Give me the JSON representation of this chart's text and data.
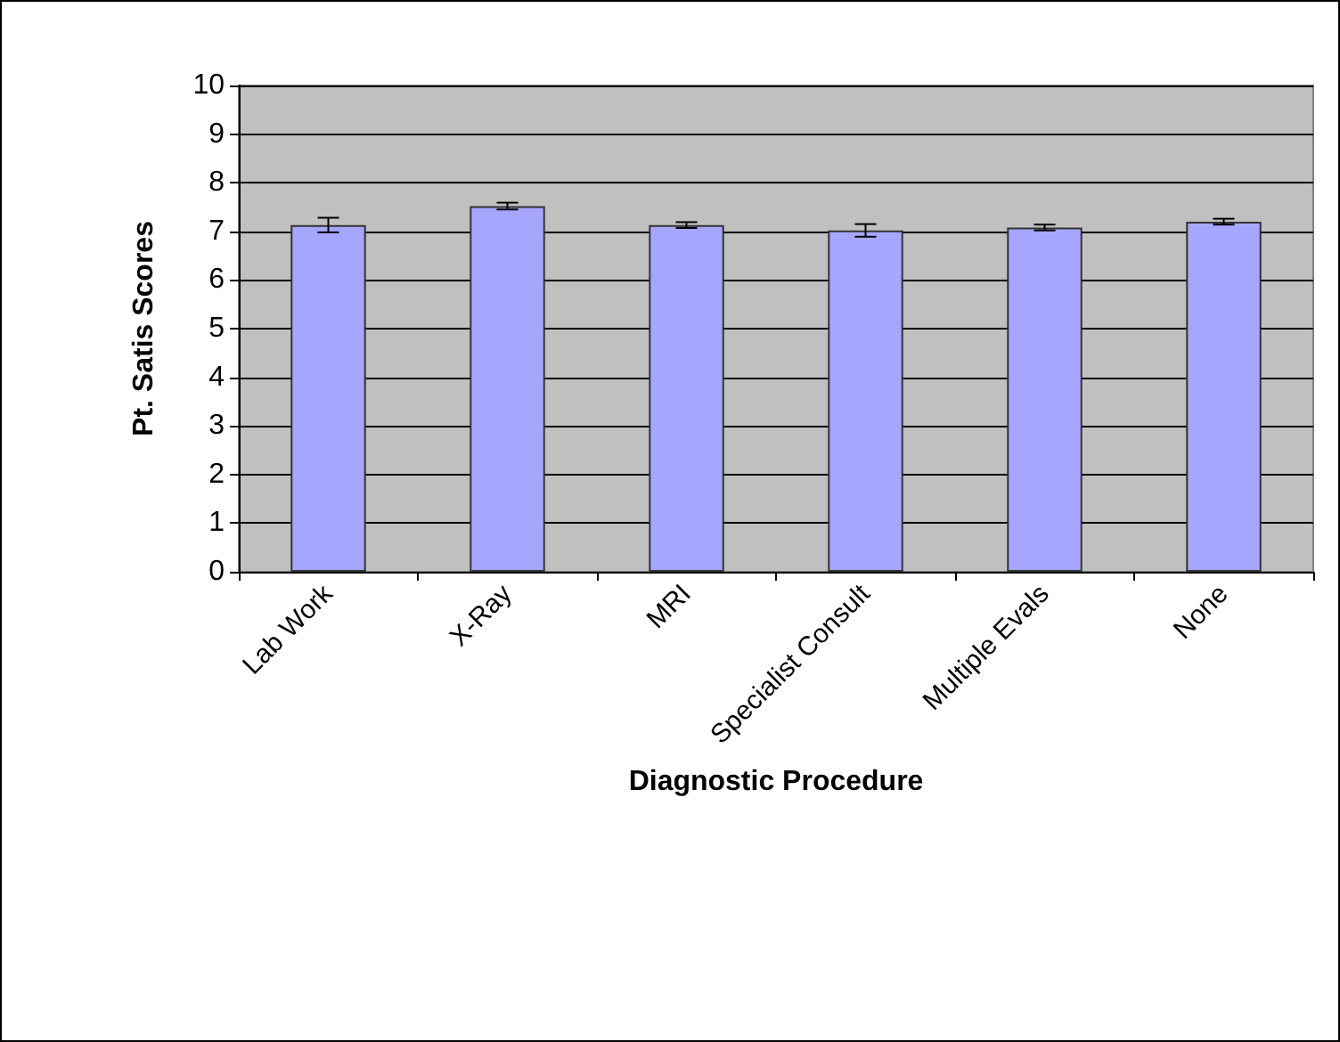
{
  "chart_data": {
    "type": "bar",
    "xlabel": "Diagnostic Procedure",
    "ylabel": "Pt. Satis Scores",
    "categories": [
      "Lab Work",
      "X-Ray",
      "MRI",
      "Specialist Consult",
      "Multiple Evals",
      "None"
    ],
    "series": [
      {
        "color": "#a6a6ff",
        "values": [
          7.13,
          7.52,
          7.13,
          7.02,
          7.08,
          7.2
        ],
        "errors": [
          0.15,
          0.07,
          0.06,
          0.13,
          0.06,
          0.06
        ]
      }
    ],
    "ylim": [
      0,
      10
    ],
    "yticks": [
      0,
      1,
      2,
      3,
      4,
      5,
      6,
      7,
      8,
      9,
      10
    ],
    "grid": "y"
  }
}
